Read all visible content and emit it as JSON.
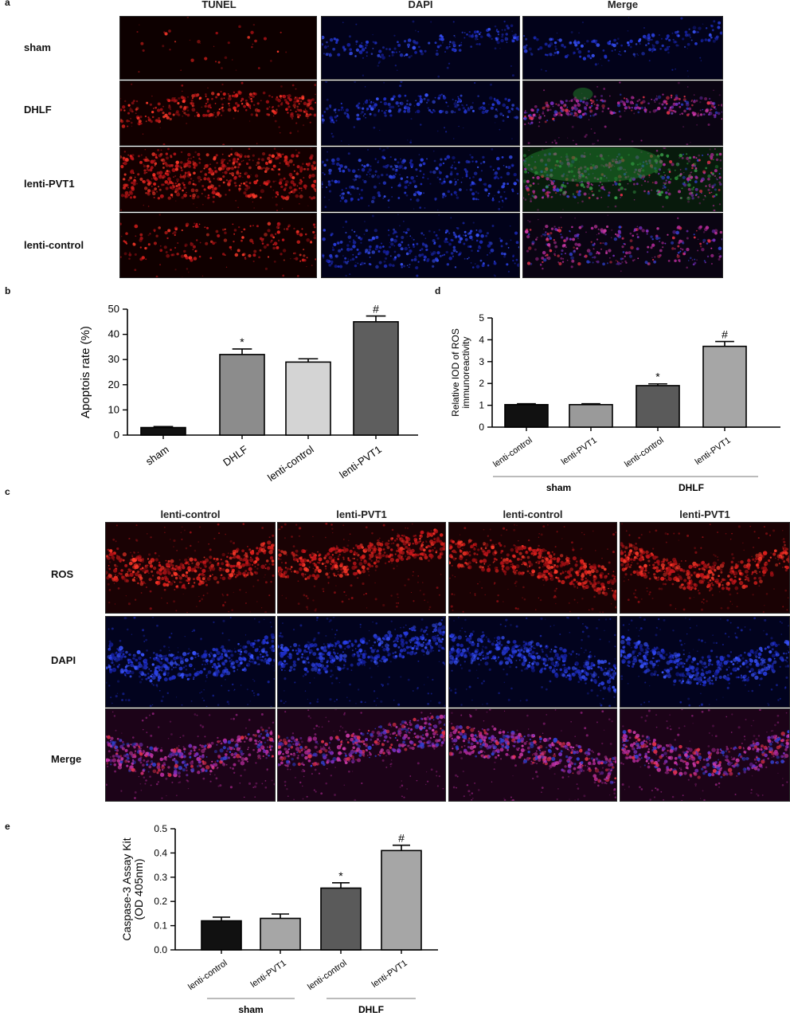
{
  "panel_a": {
    "letter": "a",
    "columns": [
      "TUNEL",
      "DAPI",
      "Merge"
    ],
    "rows": [
      "sham",
      "DHLF",
      "lenti-PVT1",
      "lenti-control"
    ]
  },
  "panel_c": {
    "letter": "c",
    "columns": [
      "lenti-control",
      "lenti-PVT1",
      "lenti-control",
      "lenti-PVT1"
    ],
    "rows": [
      "ROS",
      "DAPI",
      "Merge"
    ]
  },
  "chart_data": [
    {
      "panel": "b",
      "type": "bar",
      "categories": [
        "sham",
        "DHLF",
        "lenti-control",
        "lenti-PVT1"
      ],
      "values": [
        3,
        32,
        29,
        45
      ],
      "errors": [
        0.4,
        2.2,
        1.3,
        2.3
      ],
      "annotations": [
        "",
        "*",
        "",
        "#"
      ],
      "colors": [
        "#111111",
        "#8c8c8c",
        "#d4d4d4",
        "#5e5e5e"
      ],
      "ylabel": "Apoptois rate (%)",
      "ylim": [
        0,
        50
      ],
      "yticks": [
        0,
        10,
        20,
        30,
        40,
        50
      ]
    },
    {
      "panel": "d",
      "type": "bar",
      "categories": [
        "lenti-control",
        "lenti-PVT1",
        "lenti-control",
        "lenti-PVT1"
      ],
      "groups": [
        {
          "label": "sham",
          "members": [
            0,
            1
          ]
        },
        {
          "label": "DHLF",
          "members": [
            2,
            3
          ]
        }
      ],
      "values": [
        1.03,
        1.03,
        1.9,
        3.7
      ],
      "errors": [
        0.04,
        0.04,
        0.08,
        0.22
      ],
      "annotations": [
        "",
        "",
        "*",
        "#"
      ],
      "colors": [
        "#111111",
        "#9a9a9a",
        "#5a5a5a",
        "#a6a6a6"
      ],
      "ylabel": [
        "Relative IOD of ROS",
        "immunoreactivity"
      ],
      "ylim": [
        0,
        5
      ],
      "yticks": [
        0,
        1,
        2,
        3,
        4,
        5
      ]
    },
    {
      "panel": "e",
      "type": "bar",
      "categories": [
        "lenti-control",
        "lenti-PVT1",
        "lenti-control",
        "lenti-PVT1"
      ],
      "groups": [
        {
          "label": "sham",
          "members": [
            0,
            1
          ]
        },
        {
          "label": "DHLF",
          "members": [
            2,
            3
          ]
        }
      ],
      "values": [
        0.12,
        0.13,
        0.255,
        0.41
      ],
      "errors": [
        0.015,
        0.018,
        0.022,
        0.022
      ],
      "annotations": [
        "",
        "",
        "*",
        "#"
      ],
      "colors": [
        "#111111",
        "#a6a6a6",
        "#5a5a5a",
        "#a6a6a6"
      ],
      "ylabel": [
        "Caspase-3 Assay Kit",
        "(OD 405nm)"
      ],
      "ylim": [
        0,
        0.5
      ],
      "yticks": [
        "0.0",
        "0.1",
        "0.2",
        "0.3",
        "0.4",
        "0.5"
      ]
    }
  ]
}
